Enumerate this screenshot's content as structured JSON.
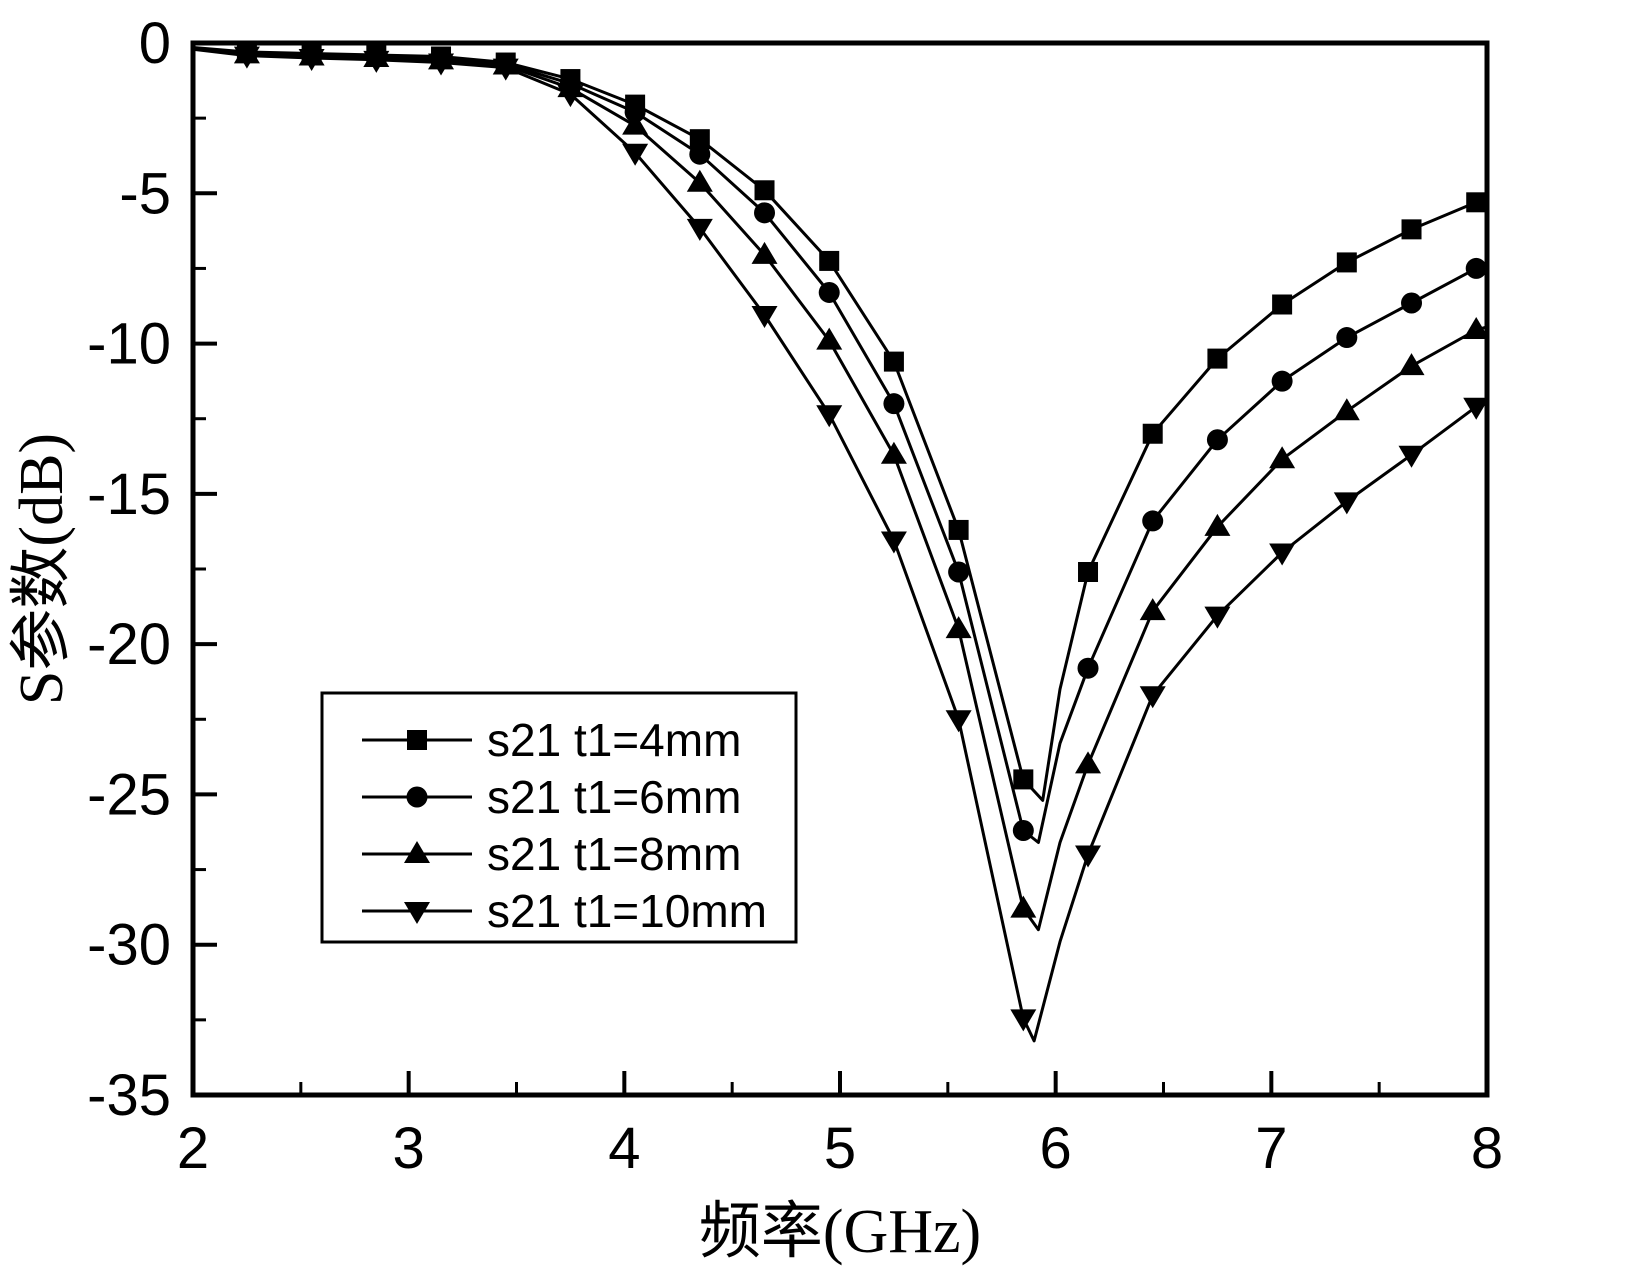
{
  "chart_data": {
    "type": "line",
    "title": "",
    "xlabel": "频率(GHz)",
    "ylabel": "S参数(dB)",
    "xlim": [
      2,
      8
    ],
    "ylim": [
      -35,
      0
    ],
    "x_major_ticks": [
      2,
      3,
      4,
      5,
      6,
      7,
      8
    ],
    "x_minor_ticks": [
      2.5,
      3.5,
      4.5,
      5.5,
      6.5,
      7.5
    ],
    "y_major_ticks": [
      0,
      -5,
      -10,
      -15,
      -20,
      -25,
      -30,
      -35
    ],
    "y_minor_ticks": [
      -2.5,
      -7.5,
      -12.5,
      -17.5,
      -22.5,
      -27.5,
      -32.5
    ],
    "grid": false,
    "legend_position": "inside-lower-left",
    "colors": {
      "line": "#000000",
      "background": "#ffffff"
    },
    "x": [
      2.25,
      2.55,
      2.85,
      3.15,
      3.45,
      3.75,
      4.05,
      4.35,
      4.65,
      4.95,
      5.25,
      5.55,
      5.85,
      6.15,
      6.45,
      6.75,
      7.05,
      7.35,
      7.65,
      7.95
    ],
    "series": [
      {
        "name": "s21 t1=4mm",
        "marker": "square",
        "values": [
          -0.3,
          -0.35,
          -0.4,
          -0.45,
          -0.65,
          -1.2,
          -2.05,
          -3.2,
          -4.9,
          -7.25,
          -10.6,
          -16.2,
          -24.5,
          -17.6,
          -13.0,
          -10.5,
          -8.7,
          -7.3,
          -6.2,
          -5.3
        ],
        "extra_line_points": [
          [
            2.0,
            -0.15
          ],
          [
            5.94,
            -25.2
          ],
          [
            6.02,
            -21.5
          ],
          [
            8.0,
            -5.2
          ]
        ]
      },
      {
        "name": "s21 t1=6mm",
        "marker": "circle",
        "values": [
          -0.34,
          -0.4,
          -0.45,
          -0.52,
          -0.7,
          -1.35,
          -2.3,
          -3.7,
          -5.65,
          -8.3,
          -12.0,
          -17.6,
          -26.2,
          -20.8,
          -15.9,
          -13.2,
          -11.25,
          -9.8,
          -8.65,
          -7.5
        ],
        "extra_line_points": [
          [
            2.0,
            -0.17
          ],
          [
            5.92,
            -26.6
          ],
          [
            6.02,
            -23.3
          ],
          [
            8.0,
            -7.4
          ]
        ]
      },
      {
        "name": "s21 t1=8mm",
        "marker": "triangle-up",
        "values": [
          -0.38,
          -0.45,
          -0.5,
          -0.58,
          -0.75,
          -1.5,
          -2.75,
          -4.65,
          -7.05,
          -9.9,
          -13.7,
          -19.5,
          -28.8,
          -24.0,
          -18.9,
          -16.1,
          -13.85,
          -12.25,
          -10.75,
          -9.55
        ],
        "extra_line_points": [
          [
            2.0,
            -0.19
          ],
          [
            5.92,
            -29.5
          ],
          [
            6.02,
            -26.6
          ],
          [
            8.0,
            -9.45
          ]
        ]
      },
      {
        "name": "s21 t1=10mm",
        "marker": "triangle-down",
        "values": [
          -0.42,
          -0.5,
          -0.56,
          -0.65,
          -0.82,
          -1.7,
          -3.65,
          -6.15,
          -9.05,
          -12.35,
          -16.55,
          -22.5,
          -32.45,
          -27.0,
          -21.7,
          -19.05,
          -16.95,
          -15.25,
          -13.7,
          -12.1
        ],
        "extra_line_points": [
          [
            2.0,
            -0.21
          ],
          [
            5.9,
            -33.2
          ],
          [
            6.02,
            -29.9
          ],
          [
            8.0,
            -11.95
          ]
        ]
      }
    ]
  }
}
